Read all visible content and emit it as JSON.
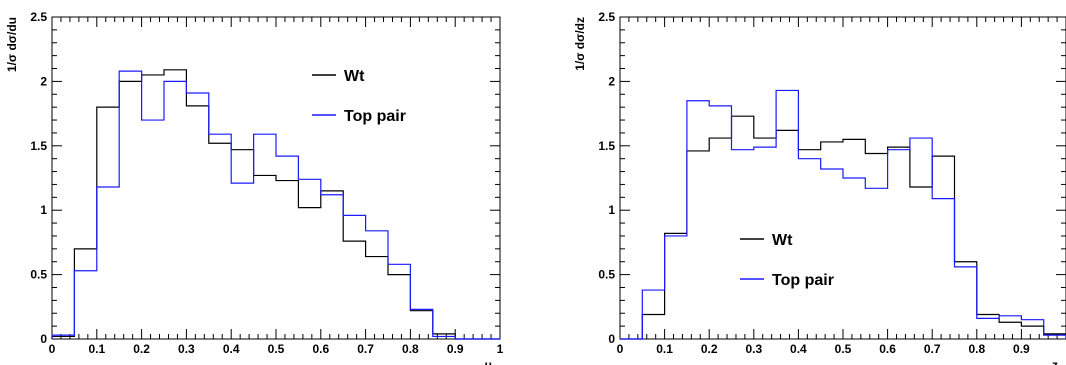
{
  "chart_data": [
    {
      "type": "step",
      "ylabel": "1/σ dσ/du",
      "xlabel": "u",
      "xlim": [
        0,
        1
      ],
      "ylim": [
        0,
        2.5
      ],
      "x_ticks": [
        "0",
        "0.1",
        "0.2",
        "0.3",
        "0.4",
        "0.5",
        "0.6",
        "0.7",
        "0.8",
        "0.9",
        "1"
      ],
      "y_ticks": [
        "0",
        "0.5",
        "1",
        "1.5",
        "2",
        "2.5"
      ],
      "bin_edges": [
        0,
        0.05,
        0.1,
        0.15,
        0.2,
        0.25,
        0.3,
        0.35,
        0.4,
        0.45,
        0.5,
        0.55,
        0.6,
        0.65,
        0.7,
        0.75,
        0.8,
        0.85,
        0.9,
        0.95,
        1.0
      ],
      "legend_placement": "top-right",
      "series": [
        {
          "name": "Wt",
          "color": "#000000",
          "values": [
            0.02,
            0.7,
            1.8,
            2.0,
            2.05,
            2.09,
            1.81,
            1.52,
            1.47,
            1.27,
            1.23,
            1.02,
            1.15,
            0.76,
            0.64,
            0.5,
            0.22,
            0.04,
            0.0,
            0.0
          ]
        },
        {
          "name": "Top pair",
          "color": "#1a1aff",
          "values": [
            0.03,
            0.53,
            1.18,
            2.08,
            1.7,
            2.0,
            1.91,
            1.59,
            1.21,
            1.59,
            1.42,
            1.24,
            1.12,
            0.96,
            0.84,
            0.58,
            0.23,
            0.02,
            0.0,
            0.0
          ]
        }
      ]
    },
    {
      "type": "step",
      "ylabel": "1/σ dσ/dz",
      "xlabel": "z",
      "xlim": [
        0,
        1
      ],
      "ylim": [
        0,
        2.5
      ],
      "x_ticks": [
        "0",
        "0.1",
        "0.2",
        "0.3",
        "0.4",
        "0.5",
        "0.6",
        "0.7",
        "0.8",
        "0.9"
      ],
      "y_ticks": [
        "0",
        "0.5",
        "1",
        "1.5",
        "2",
        "2.5"
      ],
      "bin_edges": [
        0,
        0.05,
        0.1,
        0.15,
        0.2,
        0.25,
        0.3,
        0.35,
        0.4,
        0.45,
        0.5,
        0.55,
        0.6,
        0.65,
        0.7,
        0.75,
        0.8,
        0.85,
        0.9,
        0.95,
        1.0
      ],
      "legend_placement": "center-left",
      "series": [
        {
          "name": "Wt",
          "color": "#000000",
          "values": [
            0.0,
            0.19,
            0.82,
            1.46,
            1.56,
            1.73,
            1.56,
            1.62,
            1.47,
            1.53,
            1.55,
            1.44,
            1.49,
            1.18,
            1.42,
            0.6,
            0.19,
            0.13,
            0.1,
            0.04
          ]
        },
        {
          "name": "Top pair",
          "color": "#1a1aff",
          "values": [
            0.0,
            0.38,
            0.8,
            1.85,
            1.81,
            1.47,
            1.49,
            1.93,
            1.4,
            1.32,
            1.25,
            1.17,
            1.47,
            1.56,
            1.09,
            0.56,
            0.16,
            0.18,
            0.15,
            0.03
          ]
        }
      ]
    }
  ]
}
